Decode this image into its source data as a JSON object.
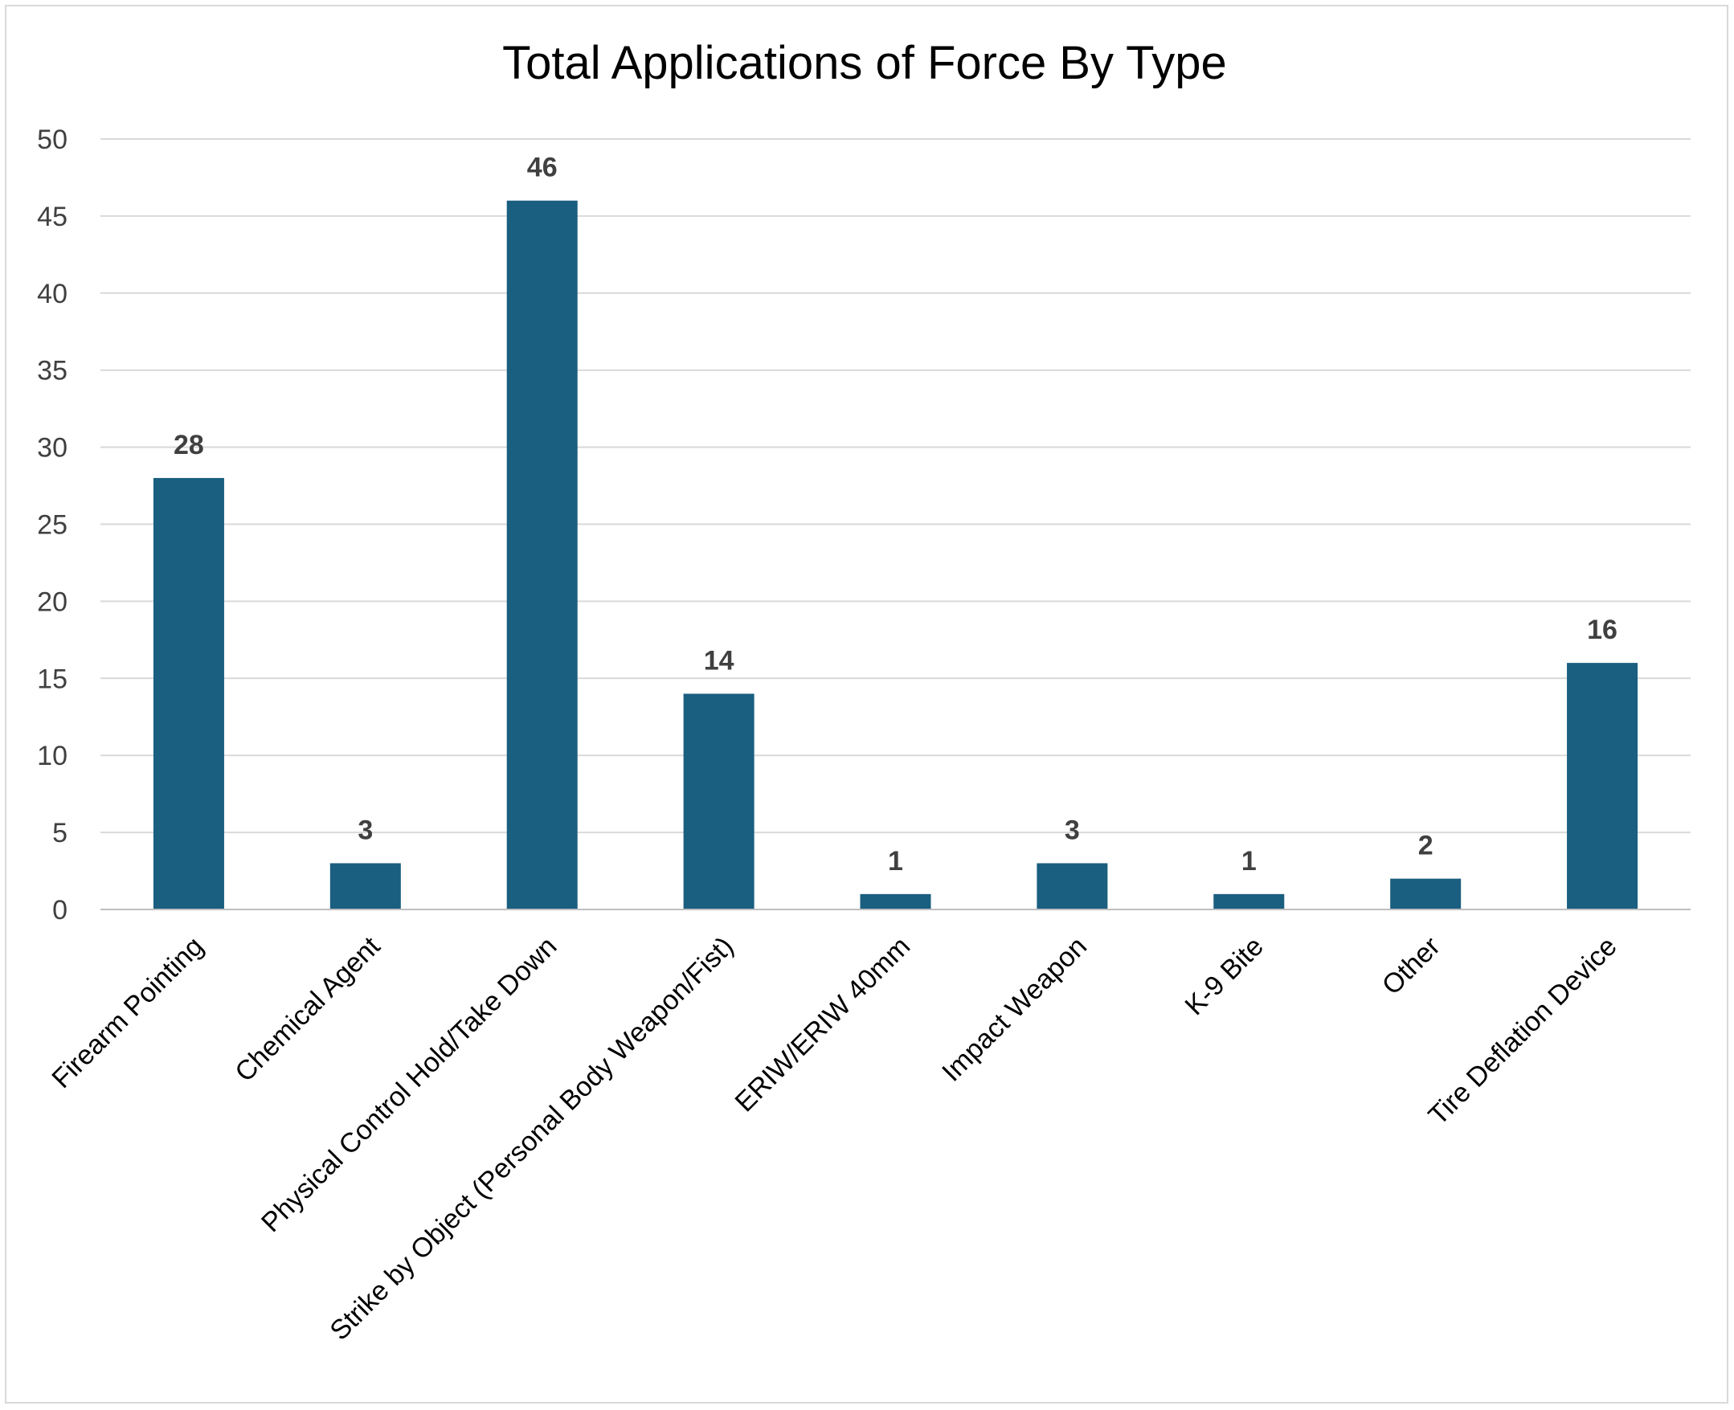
{
  "chart_data": {
    "type": "bar",
    "title": "Total Applications of Force By Type",
    "xlabel": "",
    "ylabel": "",
    "categories": [
      "Firearm Pointing",
      "Chemical Agent",
      "Physical Control Hold/Take Down",
      "Strike by Object (Personal Body Weapon/Fist)",
      "ERIW/ERIW 40mm",
      "Impact Weapon",
      "K-9 Bite",
      "Other",
      "Tire Deflation Device"
    ],
    "values": [
      28,
      3,
      46,
      14,
      1,
      3,
      1,
      2,
      16
    ],
    "ylim": [
      0,
      50
    ],
    "yticks": [
      0,
      5,
      10,
      15,
      20,
      25,
      30,
      35,
      40,
      45,
      50
    ],
    "grid": true,
    "legend": "none",
    "data_labels": true,
    "bar_color": "#1a5e80"
  }
}
